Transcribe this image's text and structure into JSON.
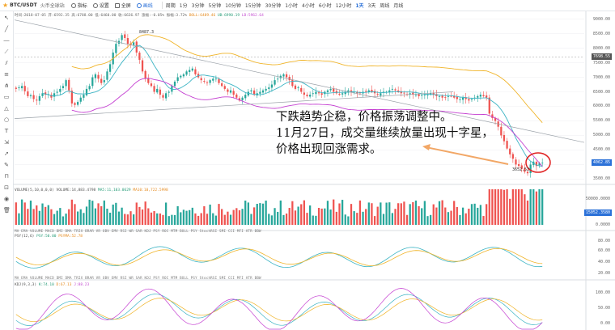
{
  "toolbar": {
    "symbol": "BTC/USDT",
    "exchange": "火币全球站",
    "buttons": {
      "indicators": "指标",
      "settings": "设置",
      "fullscreen": "全屏",
      "draw": "画线"
    },
    "periods": [
      "周期",
      "1分",
      "3分钟",
      "5分钟",
      "10分钟",
      "15分钟",
      "30分钟",
      "1小时",
      "4小时",
      "6小时",
      "12小时",
      "1天",
      "3天",
      "周线",
      "月线"
    ],
    "active_period": "1天"
  },
  "infobar": {
    "text_a": "时间:2018-07-05  开:6592.35  高:6788.00  低:6460.00  收:6636.97  涨幅:-0.05%  振幅:3.72%",
    "text_b": "BOLL:6489.46",
    "text_c": "UB:6990.19",
    "text_d": "LB:5962.64"
  },
  "annotation": {
    "line1": "下跌趋势企稳，价格振荡调整中。",
    "line2": "11月27日，成交量继续放量出现十字星，",
    "line3": "价格出现回涨需求。"
  },
  "labels": {
    "high": "8487.3",
    "low": "3652.53"
  },
  "indicator_tabs": "MA  EMA  VOLUME  MACD  DMI  DMA  TRIX  BRAR  VR  OBV  EMV  RSI  WR  SAR  KDJ  PSY  ROC  MTM  BOLL  PSY  StochRSI  SMI  CCI  MFI  ATR  BBW",
  "volume_title": {
    "name": "VOLUME(5,10,0,0,0)",
    "v": "VOLUME:14,883.4798",
    "m5": "MA5:11,103.0629",
    "m10": "MA10:10,722.5998"
  },
  "psy_title": {
    "name": "PSY(12,6)",
    "a": "PSY:50.00",
    "b": "PSYMA:52.78"
  },
  "kdj_title": {
    "name": "KDJ(9,3,3)",
    "k": "K:74.10",
    "d": "D:67.13",
    "j": "J:88.23"
  },
  "price_axis": {
    "ticks": [
      "9000.00",
      "8500.00",
      "8000.00",
      "7500.00",
      "7000.00",
      "6500.00",
      "6000.00",
      "5500.00",
      "5000.00",
      "4500.00",
      "4000.00",
      "3500.00"
    ],
    "badge_current": "7698.55",
    "badge_last": "4062.85"
  },
  "volume_axis": {
    "ticks": [
      "50000.0000",
      "0.0000"
    ],
    "badge": "15052.3580"
  },
  "psy_axis": {
    "ticks": [
      "80.00",
      "60.00",
      "40.00",
      "20.00"
    ]
  },
  "kdj_axis": {
    "ticks": [
      "100.00",
      "50.00",
      "0.00"
    ]
  },
  "colors": {
    "up": "#26a69a",
    "down": "#ef5350",
    "ma_yellow": "#f0b429",
    "ma_teal": "#3cb4c4",
    "ma_purple": "#c43fd1",
    "annotation_arrow": "#f2a766",
    "circle": "#e02020",
    "active_blue": "#2b71d8"
  },
  "chart_data": {
    "type": "candlestick",
    "symbol": "BTC/USDT",
    "interval": "1天",
    "ylim": [
      3400,
      9100
    ],
    "price_ticks": [
      9000,
      8500,
      8000,
      7500,
      7000,
      6500,
      6000,
      5500,
      5000,
      4500,
      4000,
      3500
    ],
    "high_mark": 8487.3,
    "low_mark": 3652.53,
    "current_line": 7698.55,
    "last_close": 4062.85,
    "closes": [
      6600,
      6650,
      6700,
      6520,
      6350,
      6380,
      6250,
      6200,
      6350,
      6450,
      6400,
      6420,
      6300,
      6450,
      6500,
      6600,
      6700,
      6900,
      6550,
      6100,
      6050,
      6150,
      6300,
      6400,
      6600,
      6700,
      7000,
      7100,
      6950,
      6800,
      6900,
      7200,
      7450,
      7850,
      8150,
      8250,
      8450,
      8350,
      8150,
      8100,
      8200,
      7850,
      7600,
      7200,
      6950,
      6800,
      6700,
      6500,
      6600,
      6400,
      6300,
      6450,
      6500,
      6700,
      6850,
      7000,
      7050,
      7100,
      7200,
      7250,
      7300,
      7100,
      7000,
      6900,
      6850,
      6800,
      6900,
      6950,
      6950,
      6800,
      6700,
      6600,
      6500,
      6550,
      6400,
      6300,
      6200,
      6300,
      6400,
      6500,
      6550,
      6400,
      6450,
      6500,
      6550,
      6600,
      6650,
      6750,
      6900,
      6950,
      7050,
      7100,
      7000,
      6900,
      6700,
      6600,
      6650,
      6500,
      6400,
      6350,
      6400,
      6450,
      6500,
      6450,
      6400,
      6500,
      6550,
      6600,
      6500,
      6450,
      6400,
      6450,
      6500,
      6550,
      6500,
      6500,
      6450,
      6450,
      6500,
      6500,
      6550,
      6500,
      6450,
      6400,
      6450,
      6500,
      6500,
      6550,
      6600,
      6550,
      6500,
      6450,
      6450,
      6400,
      6450,
      6400,
      6400,
      6350,
      6400,
      6400,
      6400,
      6450,
      6400,
      6350,
      6350,
      6300,
      6300,
      6350,
      6350,
      6300,
      6250,
      6250,
      6300,
      6250,
      6200,
      6250,
      6300,
      6350,
      6400,
      6350,
      6300,
      5750,
      5600,
      5500,
      5300,
      5000,
      4800,
      4550,
      4350,
      4200,
      4000,
      3950,
      3850,
      3750,
      3700,
      4000,
      4100,
      3950,
      4050,
      4060
    ]
  }
}
